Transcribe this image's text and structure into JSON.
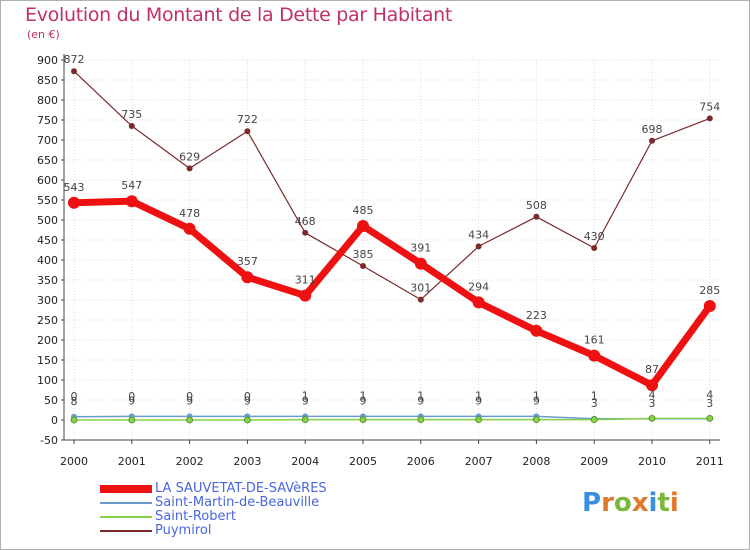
{
  "title": "Evolution du Montant de la Dette par Habitant",
  "subtitle": "(en €)",
  "logo": {
    "text": "Proxiti",
    "colors": [
      "#3a8de0",
      "#e07a2a",
      "#7ab83a",
      "#e07a2a",
      "#3a8de0",
      "#7ab83a",
      "#e07a2a"
    ]
  },
  "chart_data": {
    "type": "line",
    "title": "Evolution du Montant de la Dette par Habitant",
    "ylabel": "(en €)",
    "x": [
      "2000",
      "2001",
      "2002",
      "2003",
      "2004",
      "2005",
      "2006",
      "2007",
      "2008",
      "2009",
      "2010",
      "2011"
    ],
    "ylim": [
      -50,
      900
    ],
    "yticks": [
      -50,
      0,
      50,
      100,
      150,
      200,
      250,
      300,
      350,
      400,
      450,
      500,
      550,
      600,
      650,
      700,
      750,
      800,
      850,
      900
    ],
    "grid": true,
    "legend_position": "bottom-left",
    "series": [
      {
        "name": "LA SAUVETAT-DE-SAVèRES",
        "color": "#ee1111",
        "values": [
          543,
          547,
          478,
          357,
          311,
          485,
          391,
          294,
          223,
          161,
          87,
          285
        ]
      },
      {
        "name": "Saint-Martin-de-Beauville",
        "color": "#6a9cc8",
        "values": [
          8,
          9,
          9,
          9,
          9,
          9,
          9,
          9,
          9,
          3,
          3,
          3
        ]
      },
      {
        "name": "Saint-Robert",
        "color": "#88d048",
        "values": [
          0,
          0,
          0,
          0,
          1,
          1,
          1,
          1,
          1,
          1,
          4,
          4
        ]
      },
      {
        "name": "Puymirol",
        "color": "#7a2a2a",
        "values": [
          872,
          735,
          629,
          722,
          468,
          385,
          301,
          434,
          508,
          430,
          698,
          754
        ]
      }
    ]
  }
}
